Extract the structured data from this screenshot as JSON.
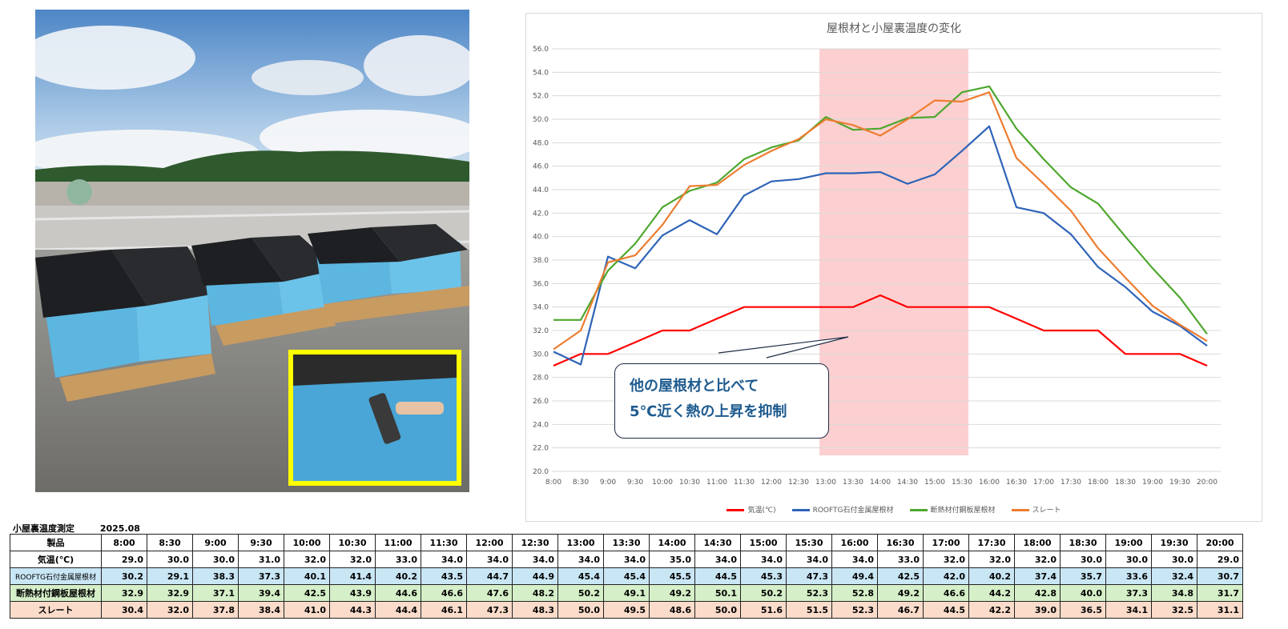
{
  "photo": {
    "description_icon": "rooftop-photo-icon"
  },
  "chart_data": {
    "type": "line",
    "title": "屋根材と小屋裏温度の変化",
    "categories": [
      "8:00",
      "8:30",
      "9:00",
      "9:30",
      "10:00",
      "10:30",
      "11:00",
      "11:30",
      "12:00",
      "12:30",
      "13:00",
      "13:30",
      "14:00",
      "14:30",
      "15:00",
      "15:30",
      "16:00",
      "16:30",
      "17:00",
      "17:30",
      "18:00",
      "18:30",
      "19:00",
      "19:30",
      "20:00"
    ],
    "ylim": [
      20,
      56
    ],
    "yticks": [
      "20.0",
      "22.0",
      "24.0",
      "26.0",
      "28.0",
      "30.0",
      "32.0",
      "34.0",
      "36.0",
      "38.0",
      "40.0",
      "42.0",
      "44.0",
      "46.0",
      "48.0",
      "50.0",
      "52.0",
      "54.0",
      "56.0"
    ],
    "highlight_range": [
      "13:00",
      "15:30"
    ],
    "highlight_color": "#fbc8c8",
    "series": [
      {
        "name": "気温(℃)",
        "color": "#ff0000",
        "values": [
          29.0,
          30.0,
          30.0,
          31.0,
          32.0,
          32.0,
          33.0,
          34.0,
          34.0,
          34.0,
          34.0,
          34.0,
          35.0,
          34.0,
          34.0,
          34.0,
          34.0,
          33.0,
          32.0,
          32.0,
          32.0,
          30.0,
          30.0,
          30.0,
          29.0
        ]
      },
      {
        "name": "ROOFTG石付金属屋根材",
        "color": "#2e63b8",
        "values": [
          30.2,
          29.1,
          38.3,
          37.3,
          40.1,
          41.4,
          40.2,
          43.5,
          44.7,
          44.9,
          45.4,
          45.4,
          45.5,
          44.5,
          45.3,
          47.3,
          49.4,
          42.5,
          42.0,
          40.2,
          37.4,
          35.7,
          33.6,
          32.4,
          30.7
        ]
      },
      {
        "name": "断熱材付鋼板屋根材",
        "color": "#4ea72e",
        "values": [
          32.9,
          32.9,
          37.1,
          39.4,
          42.5,
          43.9,
          44.6,
          46.6,
          47.6,
          48.2,
          50.2,
          49.1,
          49.2,
          50.1,
          50.2,
          52.3,
          52.8,
          49.2,
          46.6,
          44.2,
          42.8,
          40.0,
          37.3,
          34.8,
          31.7
        ]
      },
      {
        "name": "スレート",
        "color": "#ed7d31",
        "values": [
          30.4,
          32.0,
          37.8,
          38.4,
          41.0,
          44.3,
          44.4,
          46.1,
          47.3,
          48.3,
          50.0,
          49.5,
          48.6,
          50.0,
          51.6,
          51.5,
          52.3,
          46.7,
          44.5,
          42.2,
          39.0,
          36.5,
          34.1,
          32.5,
          31.1
        ]
      }
    ],
    "annotation": {
      "line1": "他の屋根材と比べて",
      "line2": "5℃近く熱の上昇を抑制"
    }
  },
  "table": {
    "caption": "小屋裏温度測定",
    "date": "2025.08",
    "header_label": "製品",
    "rows": [
      {
        "label": "気温(℃)",
        "style": "plain"
      },
      {
        "label": "ROOFTG石付金属屋根材",
        "style": "blue"
      },
      {
        "label": "断熱材付鋼板屋根材",
        "style": "green"
      },
      {
        "label": "スレート",
        "style": "orange"
      }
    ],
    "values": [
      [
        "29.0",
        "30.0",
        "30.0",
        "31.0",
        "32.0",
        "32.0",
        "33.0",
        "34.0",
        "34.0",
        "34.0",
        "34.0",
        "34.0",
        "35.0",
        "34.0",
        "34.0",
        "34.0",
        "34.0",
        "33.0",
        "32.0",
        "32.0",
        "32.0",
        "30.0",
        "30.0",
        "30.0",
        "29.0"
      ],
      [
        "30.2",
        "29.1",
        "38.3",
        "37.3",
        "40.1",
        "41.4",
        "40.2",
        "43.5",
        "44.7",
        "44.9",
        "45.4",
        "45.4",
        "45.5",
        "44.5",
        "45.3",
        "47.3",
        "49.4",
        "42.5",
        "42.0",
        "40.2",
        "37.4",
        "35.7",
        "33.6",
        "32.4",
        "30.7"
      ],
      [
        "32.9",
        "32.9",
        "37.1",
        "39.4",
        "42.5",
        "43.9",
        "44.6",
        "46.6",
        "47.6",
        "48.2",
        "50.2",
        "49.1",
        "49.2",
        "50.1",
        "50.2",
        "52.3",
        "52.8",
        "49.2",
        "46.6",
        "44.2",
        "42.8",
        "40.0",
        "37.3",
        "34.8",
        "31.7"
      ],
      [
        "30.4",
        "32.0",
        "37.8",
        "38.4",
        "41.0",
        "44.3",
        "44.4",
        "46.1",
        "47.3",
        "48.3",
        "50.0",
        "49.5",
        "48.6",
        "50.0",
        "51.6",
        "51.5",
        "52.3",
        "46.7",
        "44.5",
        "42.2",
        "39.0",
        "36.5",
        "34.1",
        "32.5",
        "31.1"
      ]
    ]
  }
}
